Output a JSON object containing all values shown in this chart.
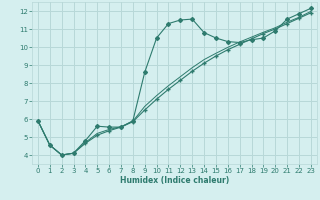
{
  "xlabel": "Humidex (Indice chaleur)",
  "bg_color": "#d5efef",
  "grid_color": "#b8d8d8",
  "line_color": "#2e7b6e",
  "xlim": [
    -0.5,
    23.5
  ],
  "ylim": [
    3.5,
    12.5
  ],
  "xticks": [
    0,
    1,
    2,
    3,
    4,
    5,
    6,
    7,
    8,
    9,
    10,
    11,
    12,
    13,
    14,
    15,
    16,
    17,
    18,
    19,
    20,
    21,
    22,
    23
  ],
  "yticks": [
    4,
    5,
    6,
    7,
    8,
    9,
    10,
    11,
    12
  ],
  "curve1_x": [
    0,
    1,
    2,
    3,
    4,
    5,
    6,
    7,
    8,
    9,
    10,
    11,
    12,
    13,
    14,
    15,
    16,
    17,
    18,
    19,
    20,
    21,
    22,
    23
  ],
  "curve1_y": [
    5.9,
    4.55,
    4.0,
    4.1,
    4.8,
    5.6,
    5.55,
    5.55,
    5.9,
    8.6,
    10.5,
    11.3,
    11.5,
    11.55,
    10.8,
    10.5,
    10.3,
    10.25,
    10.4,
    10.5,
    10.9,
    11.55,
    11.85,
    12.15
  ],
  "curve2_x": [
    0,
    1,
    2,
    3,
    4,
    5,
    6,
    7,
    8,
    9,
    10,
    11,
    12,
    13,
    14,
    15,
    16,
    17,
    18,
    19,
    20,
    21,
    22,
    23
  ],
  "curve2_y": [
    5.9,
    4.55,
    4.0,
    4.1,
    4.65,
    5.1,
    5.35,
    5.55,
    5.85,
    6.5,
    7.1,
    7.65,
    8.15,
    8.65,
    9.1,
    9.5,
    9.85,
    10.15,
    10.45,
    10.75,
    11.0,
    11.3,
    11.6,
    11.9
  ],
  "curve3_x": [
    0,
    1,
    2,
    3,
    4,
    5,
    6,
    7,
    8,
    9,
    10,
    11,
    12,
    13,
    14,
    15,
    16,
    17,
    18,
    19,
    20,
    21,
    22,
    23
  ],
  "curve3_y": [
    5.9,
    4.55,
    4.0,
    4.1,
    4.7,
    5.2,
    5.42,
    5.57,
    5.88,
    6.7,
    7.3,
    7.85,
    8.35,
    8.85,
    9.3,
    9.65,
    9.98,
    10.28,
    10.55,
    10.82,
    11.07,
    11.38,
    11.65,
    11.98
  ]
}
